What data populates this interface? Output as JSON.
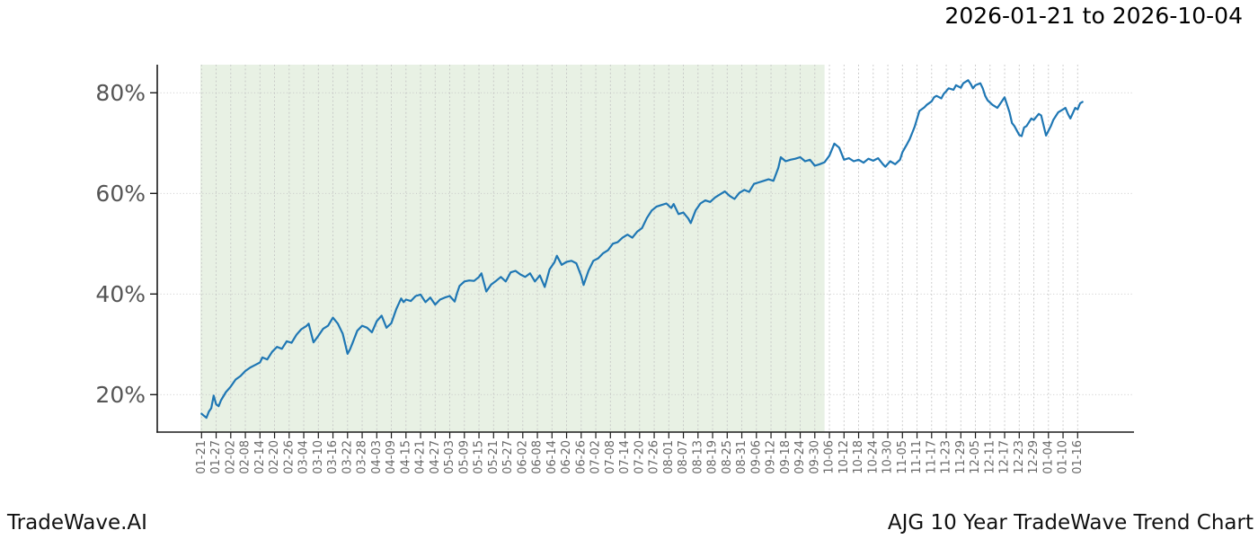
{
  "header": {
    "title": "2026-01-21 to 2026-10-04"
  },
  "footer": {
    "brand": "TradeWave.AI",
    "caption": "AJG 10 Year TradeWave Trend Chart"
  },
  "chart_data": {
    "type": "line",
    "title": "2026-01-21 to 2026-10-04",
    "xlabel": "",
    "ylabel": "",
    "grid": true,
    "legend": false,
    "ylim": [
      12.5,
      85.6
    ],
    "y_tick_values": [
      20,
      40,
      60,
      80
    ],
    "y_tick_labels": [
      "20%",
      "40%",
      "60%",
      "80%"
    ],
    "x_tick_interval_days": 6,
    "x_tick_labels": [
      "01-21",
      "01-27",
      "02-02",
      "02-08",
      "02-14",
      "02-20",
      "02-26",
      "03-04",
      "03-10",
      "03-16",
      "03-22",
      "03-28",
      "04-03",
      "04-09",
      "04-15",
      "04-21",
      "04-27",
      "05-03",
      "05-09",
      "05-15",
      "05-21",
      "05-27",
      "06-02",
      "06-08",
      "06-14",
      "06-20",
      "06-26",
      "07-02",
      "07-08",
      "07-14",
      "07-20",
      "07-26",
      "08-01",
      "08-07",
      "08-13",
      "08-19",
      "08-25",
      "08-31",
      "09-06",
      "09-12",
      "09-18",
      "09-24",
      "09-30",
      "10-06",
      "10-12",
      "10-18",
      "10-24",
      "10-30",
      "11-05",
      "11-11",
      "11-17",
      "11-23",
      "11-29",
      "12-05",
      "12-11",
      "12-17",
      "12-23",
      "12-29",
      "01-04",
      "01-10",
      "01-16"
    ],
    "shaded_region": {
      "start_label": "01-21",
      "end_label": "10-04",
      "start_day": 0,
      "end_day": 256,
      "color": "#e8f1e4"
    },
    "colors": {
      "line": "#1f77b4",
      "grid": "#c3c3c3",
      "spine": "#1a1a1a",
      "y_tick_text": "#555555",
      "x_tick_text": "#666666"
    },
    "series": [
      {
        "name": "trend",
        "unit": "%",
        "x_days": [
          0,
          1,
          2,
          3,
          4,
          5,
          6,
          7,
          8,
          9,
          10,
          12,
          14,
          16,
          18,
          20,
          22,
          24,
          25,
          27,
          29,
          31,
          33,
          35,
          37,
          39,
          41,
          43,
          44,
          46,
          48,
          50,
          52,
          54,
          56,
          58,
          60,
          61,
          62,
          64,
          66,
          68,
          70,
          72,
          74,
          76,
          78,
          80,
          82,
          83,
          84,
          86,
          88,
          90,
          92,
          94,
          96,
          98,
          100,
          102,
          104,
          105,
          106,
          108,
          110,
          112,
          114,
          115,
          117,
          119,
          121,
          123,
          125,
          127,
          129,
          131,
          133,
          135,
          137,
          139,
          141,
          143,
          145,
          146,
          148,
          150,
          152,
          154,
          156,
          157,
          159,
          161,
          163,
          165,
          167,
          169,
          171,
          173,
          175,
          177,
          179,
          181,
          183,
          185,
          187,
          189,
          191,
          193,
          194,
          196,
          198,
          200,
          201,
          203,
          205,
          207,
          209,
          211,
          213,
          215,
          217,
          219,
          221,
          223,
          225,
          227,
          229,
          231,
          233,
          235,
          237,
          238,
          240,
          242,
          244,
          246,
          248,
          250,
          252,
          254,
          256,
          258,
          260,
          262,
          264,
          266,
          268,
          270,
          272,
          274,
          276,
          278,
          280,
          281,
          283,
          285,
          287,
          288,
          290,
          291,
          292,
          293,
          295,
          297,
          298,
          300,
          301,
          302,
          304,
          305,
          306,
          307,
          309,
          310,
          312,
          313,
          315,
          316,
          317,
          318,
          320,
          321,
          322,
          323,
          325,
          327,
          328,
          330,
          332,
          333,
          334,
          336,
          337,
          338,
          339,
          341,
          342,
          344,
          345,
          347,
          349,
          350,
          352,
          354,
          355,
          356,
          357,
          359,
          360,
          361,
          362
        ],
        "values": [
          16.2,
          15.8,
          15.4,
          16.6,
          17.3,
          19.8,
          18.1,
          17.7,
          18.9,
          19.7,
          20.5,
          21.6,
          23.0,
          23.7,
          24.7,
          25.4,
          25.9,
          26.4,
          27.4,
          27.0,
          28.5,
          29.5,
          29.1,
          30.6,
          30.3,
          31.9,
          33.0,
          33.6,
          34.1,
          30.4,
          31.7,
          33.1,
          33.7,
          35.3,
          34.1,
          32.1,
          28.1,
          29.0,
          30.2,
          32.7,
          33.7,
          33.3,
          32.4,
          34.6,
          35.7,
          33.3,
          34.2,
          37.0,
          39.1,
          38.4,
          38.9,
          38.6,
          39.6,
          39.9,
          38.4,
          39.3,
          37.9,
          38.9,
          39.3,
          39.6,
          38.5,
          40.2,
          41.6,
          42.5,
          42.7,
          42.6,
          43.4,
          44.1,
          40.5,
          41.9,
          42.6,
          43.4,
          42.5,
          44.3,
          44.6,
          43.9,
          43.4,
          44.1,
          42.5,
          43.7,
          41.4,
          44.9,
          46.3,
          47.6,
          45.8,
          46.4,
          46.6,
          46.1,
          43.6,
          41.8,
          44.6,
          46.6,
          47.1,
          48.1,
          48.7,
          50.0,
          50.3,
          51.2,
          51.8,
          51.2,
          52.4,
          53.1,
          55.1,
          56.6,
          57.4,
          57.7,
          58.0,
          57.1,
          57.9,
          55.9,
          56.2,
          55.0,
          54.1,
          56.6,
          58.0,
          58.6,
          58.3,
          59.2,
          59.8,
          60.4,
          59.5,
          58.9,
          60.1,
          60.7,
          60.3,
          61.9,
          62.2,
          62.5,
          62.8,
          62.5,
          65.1,
          67.2,
          66.4,
          66.7,
          66.9,
          67.2,
          66.4,
          66.7,
          65.5,
          65.8,
          66.2,
          67.5,
          69.9,
          69.1,
          66.7,
          67.0,
          66.4,
          66.7,
          66.1,
          66.9,
          66.5,
          67.0,
          65.8,
          65.3,
          66.4,
          65.8,
          66.7,
          68.2,
          69.9,
          70.8,
          72.0,
          73.2,
          76.4,
          77.1,
          77.6,
          78.3,
          79.1,
          79.4,
          78.9,
          79.8,
          80.3,
          80.9,
          80.6,
          81.5,
          81.0,
          81.9,
          82.5,
          81.8,
          80.9,
          81.5,
          81.9,
          80.9,
          79.4,
          78.5,
          77.6,
          77.0,
          77.7,
          79.1,
          76.1,
          74.0,
          73.4,
          71.6,
          71.4,
          73.1,
          73.4,
          74.9,
          74.6,
          75.8,
          75.5,
          71.5,
          73.4,
          74.6,
          76.1,
          76.7,
          77.0,
          75.8,
          74.9,
          77.0,
          76.7,
          77.9,
          78.2
        ]
      }
    ]
  }
}
